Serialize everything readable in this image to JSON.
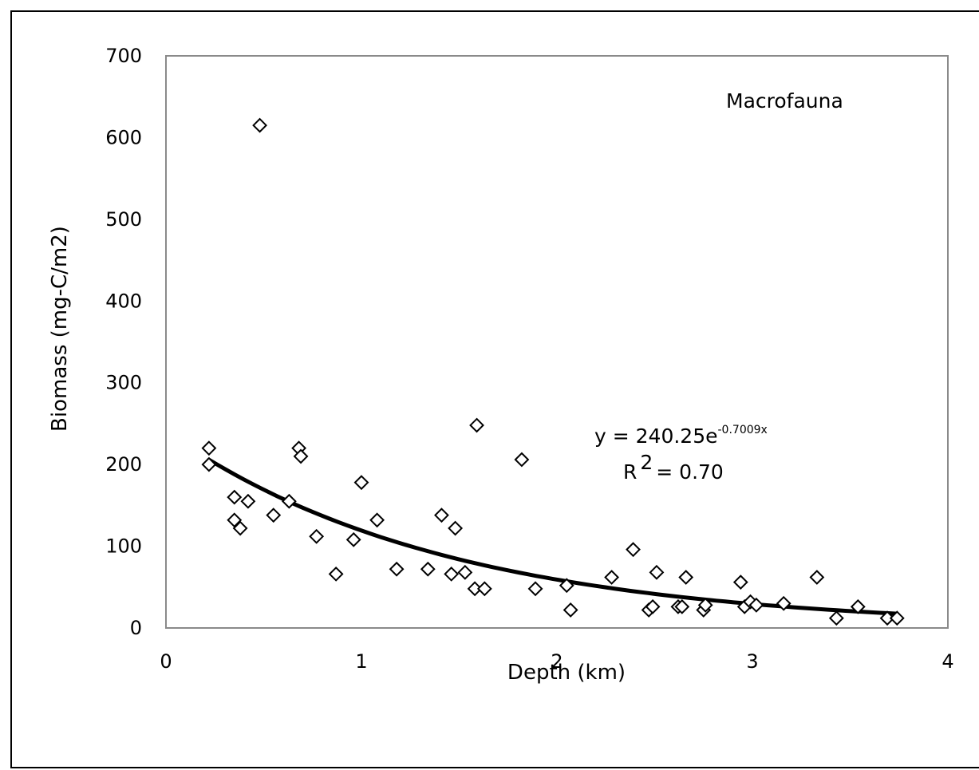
{
  "chart_data": {
    "type": "scatter",
    "title": "",
    "xlabel": "Depth (km)",
    "ylabel": "Biomass (mg-C/m2)",
    "xlim": [
      0,
      4
    ],
    "ylim": [
      0,
      700
    ],
    "xticks": [
      "0",
      "1",
      "2",
      "3",
      "4"
    ],
    "yticks": [
      "0",
      "100",
      "200",
      "300",
      "400",
      "500",
      "600",
      "700"
    ],
    "grid": false,
    "annotation_label": "Macrofauna",
    "equation": {
      "prefix": "y = 240.25e",
      "exponent": "-0.7009x",
      "r_label": "R",
      "r_exp": "2",
      "r_value": "= 0.70"
    },
    "trendline": {
      "a": 240.25,
      "b": -0.7009,
      "x_range": [
        0.22,
        3.74
      ]
    },
    "marker": "open-diamond",
    "series": [
      {
        "points": [
          [
            0.22,
            220
          ],
          [
            0.22,
            200
          ],
          [
            0.35,
            160
          ],
          [
            0.35,
            132
          ],
          [
            0.38,
            122
          ],
          [
            0.42,
            155
          ],
          [
            0.48,
            615
          ],
          [
            0.55,
            138
          ],
          [
            0.63,
            155
          ],
          [
            0.68,
            220
          ],
          [
            0.69,
            210
          ],
          [
            0.77,
            112
          ],
          [
            0.87,
            66
          ],
          [
            0.96,
            108
          ],
          [
            1.0,
            178
          ],
          [
            1.08,
            132
          ],
          [
            1.18,
            72
          ],
          [
            1.34,
            72
          ],
          [
            1.41,
            138
          ],
          [
            1.46,
            66
          ],
          [
            1.48,
            122
          ],
          [
            1.53,
            68
          ],
          [
            1.58,
            48
          ],
          [
            1.59,
            248
          ],
          [
            1.63,
            48
          ],
          [
            1.82,
            206
          ],
          [
            1.89,
            48
          ],
          [
            2.05,
            52
          ],
          [
            2.07,
            22
          ],
          [
            2.28,
            62
          ],
          [
            2.39,
            96
          ],
          [
            2.47,
            22
          ],
          [
            2.49,
            26
          ],
          [
            2.51,
            68
          ],
          [
            2.62,
            26
          ],
          [
            2.64,
            26
          ],
          [
            2.66,
            62
          ],
          [
            2.75,
            22
          ],
          [
            2.76,
            28
          ],
          [
            2.94,
            56
          ],
          [
            2.96,
            26
          ],
          [
            2.99,
            32
          ],
          [
            3.02,
            28
          ],
          [
            3.16,
            30
          ],
          [
            3.33,
            62
          ],
          [
            3.43,
            12
          ],
          [
            3.54,
            26
          ],
          [
            3.69,
            12
          ],
          [
            3.74,
            12
          ]
        ]
      }
    ]
  }
}
